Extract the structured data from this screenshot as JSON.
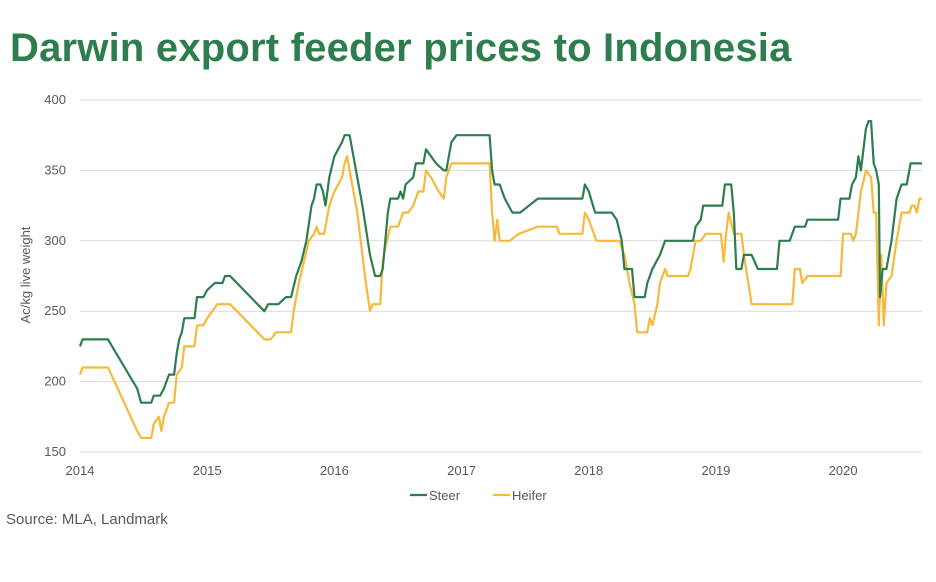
{
  "title": "Darwin export feeder prices to Indonesia",
  "source": "Source: MLA, Landmark",
  "colors": {
    "title": "#2e7d4f",
    "steer": "#2e7d4f",
    "heifer": "#f6b93b",
    "grid": "#d9d9d9",
    "text": "#595959"
  },
  "chart_data": {
    "type": "line",
    "title": "Darwin export feeder prices to Indonesia",
    "xlabel": "",
    "ylabel": "Ac/kg live weight",
    "xlim": [
      2014,
      2020.62
    ],
    "ylim": [
      150,
      400
    ],
    "yticks": [
      150,
      200,
      250,
      300,
      350,
      400
    ],
    "xticks": [
      2014,
      2015,
      2016,
      2017,
      2018,
      2019,
      2020
    ],
    "grid": "horizontal",
    "legend": "bottom",
    "series": [
      {
        "name": "Steer",
        "color": "#2e7d4f",
        "points": [
          [
            2014.0,
            225
          ],
          [
            2014.02,
            230
          ],
          [
            2014.22,
            230
          ],
          [
            2014.45,
            195
          ],
          [
            2014.48,
            185
          ],
          [
            2014.56,
            185
          ],
          [
            2014.58,
            190
          ],
          [
            2014.63,
            190
          ],
          [
            2014.66,
            195
          ],
          [
            2014.7,
            205
          ],
          [
            2014.74,
            205
          ],
          [
            2014.76,
            220
          ],
          [
            2014.78,
            230
          ],
          [
            2014.8,
            235
          ],
          [
            2014.82,
            245
          ],
          [
            2014.9,
            245
          ],
          [
            2014.92,
            260
          ],
          [
            2014.97,
            260
          ],
          [
            2015.0,
            265
          ],
          [
            2015.06,
            270
          ],
          [
            2015.12,
            270
          ],
          [
            2015.14,
            275
          ],
          [
            2015.18,
            275
          ],
          [
            2015.45,
            250
          ],
          [
            2015.48,
            255
          ],
          [
            2015.56,
            255
          ],
          [
            2015.62,
            260
          ],
          [
            2015.66,
            260
          ],
          [
            2015.7,
            275
          ],
          [
            2015.74,
            285
          ],
          [
            2015.78,
            300
          ],
          [
            2015.82,
            325
          ],
          [
            2015.84,
            330
          ],
          [
            2015.86,
            340
          ],
          [
            2015.89,
            340
          ],
          [
            2015.91,
            335
          ],
          [
            2015.93,
            325
          ],
          [
            2015.96,
            345
          ],
          [
            2016.0,
            360
          ],
          [
            2016.06,
            370
          ],
          [
            2016.08,
            375
          ],
          [
            2016.12,
            375
          ],
          [
            2016.22,
            325
          ],
          [
            2016.28,
            290
          ],
          [
            2016.32,
            275
          ],
          [
            2016.36,
            275
          ],
          [
            2016.38,
            280
          ],
          [
            2016.4,
            300
          ],
          [
            2016.42,
            320
          ],
          [
            2016.44,
            330
          ],
          [
            2016.5,
            330
          ],
          [
            2016.52,
            335
          ],
          [
            2016.54,
            330
          ],
          [
            2016.56,
            340
          ],
          [
            2016.62,
            345
          ],
          [
            2016.64,
            355
          ],
          [
            2016.7,
            355
          ],
          [
            2016.72,
            365
          ],
          [
            2016.76,
            360
          ],
          [
            2016.8,
            355
          ],
          [
            2016.86,
            350
          ],
          [
            2016.88,
            350
          ],
          [
            2016.92,
            370
          ],
          [
            2016.96,
            375
          ],
          [
            2017.22,
            375
          ],
          [
            2017.24,
            350
          ],
          [
            2017.26,
            340
          ],
          [
            2017.3,
            340
          ],
          [
            2017.34,
            330
          ],
          [
            2017.4,
            320
          ],
          [
            2017.46,
            320
          ],
          [
            2017.6,
            330
          ],
          [
            2017.95,
            330
          ],
          [
            2017.97,
            340
          ],
          [
            2018.0,
            335
          ],
          [
            2018.05,
            320
          ],
          [
            2018.18,
            320
          ],
          [
            2018.22,
            315
          ],
          [
            2018.26,
            300
          ],
          [
            2018.28,
            280
          ],
          [
            2018.34,
            280
          ],
          [
            2018.36,
            260
          ],
          [
            2018.44,
            260
          ],
          [
            2018.46,
            270
          ],
          [
            2018.5,
            280
          ],
          [
            2018.56,
            290
          ],
          [
            2018.6,
            300
          ],
          [
            2018.82,
            300
          ],
          [
            2018.84,
            310
          ],
          [
            2018.88,
            315
          ],
          [
            2018.9,
            325
          ],
          [
            2019.05,
            325
          ],
          [
            2019.07,
            340
          ],
          [
            2019.12,
            340
          ],
          [
            2019.14,
            320
          ],
          [
            2019.16,
            280
          ],
          [
            2019.2,
            280
          ],
          [
            2019.22,
            290
          ],
          [
            2019.28,
            290
          ],
          [
            2019.33,
            280
          ],
          [
            2019.48,
            280
          ],
          [
            2019.5,
            300
          ],
          [
            2019.58,
            300
          ],
          [
            2019.62,
            310
          ],
          [
            2019.7,
            310
          ],
          [
            2019.72,
            315
          ],
          [
            2019.96,
            315
          ],
          [
            2019.98,
            330
          ],
          [
            2020.05,
            330
          ],
          [
            2020.07,
            340
          ],
          [
            2020.1,
            345
          ],
          [
            2020.12,
            360
          ],
          [
            2020.14,
            350
          ],
          [
            2020.18,
            380
          ],
          [
            2020.2,
            385
          ],
          [
            2020.22,
            385
          ],
          [
            2020.24,
            355
          ],
          [
            2020.26,
            350
          ],
          [
            2020.28,
            340
          ],
          [
            2020.29,
            260
          ],
          [
            2020.31,
            280
          ],
          [
            2020.34,
            280
          ],
          [
            2020.38,
            300
          ],
          [
            2020.42,
            330
          ],
          [
            2020.46,
            340
          ],
          [
            2020.5,
            340
          ],
          [
            2020.53,
            355
          ],
          [
            2020.62,
            355
          ]
        ]
      },
      {
        "name": "Heifer",
        "color": "#f6b93b",
        "points": [
          [
            2014.0,
            205
          ],
          [
            2014.02,
            210
          ],
          [
            2014.22,
            210
          ],
          [
            2014.45,
            165
          ],
          [
            2014.48,
            160
          ],
          [
            2014.56,
            160
          ],
          [
            2014.58,
            170
          ],
          [
            2014.62,
            175
          ],
          [
            2014.64,
            165
          ],
          [
            2014.66,
            175
          ],
          [
            2014.7,
            185
          ],
          [
            2014.74,
            185
          ],
          [
            2014.76,
            205
          ],
          [
            2014.8,
            210
          ],
          [
            2014.82,
            225
          ],
          [
            2014.9,
            225
          ],
          [
            2014.92,
            240
          ],
          [
            2014.97,
            240
          ],
          [
            2015.0,
            245
          ],
          [
            2015.08,
            255
          ],
          [
            2015.18,
            255
          ],
          [
            2015.45,
            230
          ],
          [
            2015.5,
            230
          ],
          [
            2015.54,
            235
          ],
          [
            2015.66,
            235
          ],
          [
            2015.68,
            250
          ],
          [
            2015.72,
            270
          ],
          [
            2015.76,
            285
          ],
          [
            2015.8,
            300
          ],
          [
            2015.84,
            305
          ],
          [
            2015.86,
            310
          ],
          [
            2015.88,
            305
          ],
          [
            2015.92,
            305
          ],
          [
            2015.96,
            325
          ],
          [
            2016.0,
            335
          ],
          [
            2016.06,
            345
          ],
          [
            2016.08,
            355
          ],
          [
            2016.1,
            360
          ],
          [
            2016.12,
            350
          ],
          [
            2016.18,
            320
          ],
          [
            2016.24,
            275
          ],
          [
            2016.28,
            250
          ],
          [
            2016.3,
            255
          ],
          [
            2016.36,
            255
          ],
          [
            2016.38,
            285
          ],
          [
            2016.4,
            295
          ],
          [
            2016.44,
            310
          ],
          [
            2016.5,
            310
          ],
          [
            2016.54,
            320
          ],
          [
            2016.58,
            320
          ],
          [
            2016.62,
            325
          ],
          [
            2016.66,
            335
          ],
          [
            2016.7,
            335
          ],
          [
            2016.72,
            350
          ],
          [
            2016.76,
            345
          ],
          [
            2016.82,
            335
          ],
          [
            2016.86,
            330
          ],
          [
            2016.88,
            345
          ],
          [
            2016.92,
            355
          ],
          [
            2017.22,
            355
          ],
          [
            2017.24,
            320
          ],
          [
            2017.26,
            300
          ],
          [
            2017.28,
            315
          ],
          [
            2017.3,
            300
          ],
          [
            2017.38,
            300
          ],
          [
            2017.45,
            305
          ],
          [
            2017.6,
            310
          ],
          [
            2017.75,
            310
          ],
          [
            2017.77,
            305
          ],
          [
            2017.95,
            305
          ],
          [
            2017.97,
            320
          ],
          [
            2018.0,
            315
          ],
          [
            2018.06,
            300
          ],
          [
            2018.24,
            300
          ],
          [
            2018.28,
            290
          ],
          [
            2018.32,
            270
          ],
          [
            2018.36,
            255
          ],
          [
            2018.38,
            235
          ],
          [
            2018.46,
            235
          ],
          [
            2018.48,
            245
          ],
          [
            2018.5,
            240
          ],
          [
            2018.54,
            255
          ],
          [
            2018.56,
            270
          ],
          [
            2018.6,
            280
          ],
          [
            2018.62,
            275
          ],
          [
            2018.78,
            275
          ],
          [
            2018.8,
            280
          ],
          [
            2018.84,
            300
          ],
          [
            2018.88,
            300
          ],
          [
            2018.92,
            305
          ],
          [
            2019.04,
            305
          ],
          [
            2019.06,
            285
          ],
          [
            2019.08,
            305
          ],
          [
            2019.1,
            320
          ],
          [
            2019.14,
            305
          ],
          [
            2019.2,
            305
          ],
          [
            2019.22,
            290
          ],
          [
            2019.28,
            255
          ],
          [
            2019.6,
            255
          ],
          [
            2019.62,
            280
          ],
          [
            2019.66,
            280
          ],
          [
            2019.68,
            270
          ],
          [
            2019.72,
            275
          ],
          [
            2019.98,
            275
          ],
          [
            2020.0,
            305
          ],
          [
            2020.06,
            305
          ],
          [
            2020.08,
            300
          ],
          [
            2020.1,
            305
          ],
          [
            2020.14,
            335
          ],
          [
            2020.18,
            350
          ],
          [
            2020.22,
            345
          ],
          [
            2020.24,
            320
          ],
          [
            2020.26,
            320
          ],
          [
            2020.28,
            240
          ],
          [
            2020.3,
            290
          ],
          [
            2020.32,
            240
          ],
          [
            2020.34,
            270
          ],
          [
            2020.38,
            275
          ],
          [
            2020.42,
            300
          ],
          [
            2020.46,
            320
          ],
          [
            2020.52,
            320
          ],
          [
            2020.54,
            325
          ],
          [
            2020.56,
            325
          ],
          [
            2020.58,
            320
          ],
          [
            2020.6,
            330
          ],
          [
            2020.62,
            330
          ]
        ]
      }
    ]
  }
}
